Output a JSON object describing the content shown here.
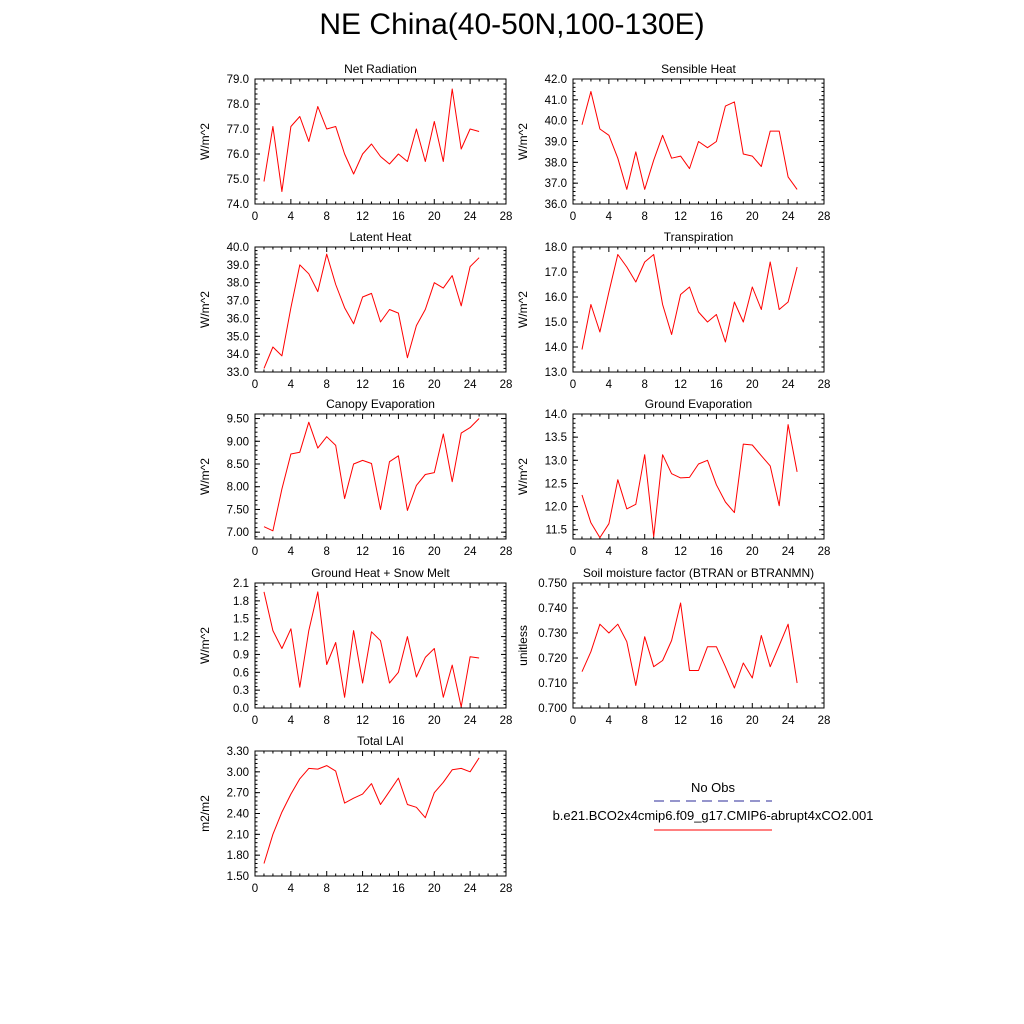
{
  "figure": {
    "title": "NE China(40-50N,100-130E)"
  },
  "legend": {
    "obs_label": "No Obs",
    "model_label": "b.e21.BCO2x4cmip6.f09_g17.CMIP6-abrupt4xCO2.001",
    "obs_color": "#2b2b9a",
    "model_color": "#ff0000"
  },
  "chart_data": [
    {
      "type": "line",
      "title": "Net Radiation",
      "ylabel": "W/m^2",
      "xlim": [
        0,
        28
      ],
      "xticks": [
        "0",
        "4",
        "8",
        "12",
        "16",
        "20",
        "24",
        "28"
      ],
      "ylim": [
        74,
        79
      ],
      "yticks": [
        "74.0",
        "75.0",
        "76.0",
        "77.0",
        "78.0",
        "79.0"
      ],
      "grid": false,
      "series": [
        {
          "color": "#ff0000",
          "x": [
            1,
            2,
            3,
            4,
            5,
            6,
            7,
            8,
            9,
            10,
            11,
            12,
            13,
            14,
            15,
            16,
            17,
            18,
            19,
            20,
            21,
            22,
            23,
            24,
            25
          ],
          "y": [
            74.9,
            77.1,
            74.5,
            77.1,
            77.5,
            76.5,
            77.9,
            77.0,
            77.1,
            76.0,
            75.2,
            76.0,
            76.4,
            75.9,
            75.6,
            76.0,
            75.7,
            77.0,
            75.7,
            77.3,
            75.7,
            78.6,
            76.2,
            77.0,
            76.9
          ]
        }
      ]
    },
    {
      "type": "line",
      "title": "Sensible Heat",
      "ylabel": "W/m^2",
      "xlim": [
        0,
        28
      ],
      "xticks": [
        "0",
        "4",
        "8",
        "12",
        "16",
        "20",
        "24",
        "28"
      ],
      "ylim": [
        36,
        42
      ],
      "yticks": [
        "36.0",
        "37.0",
        "38.0",
        "39.0",
        "40.0",
        "41.0",
        "42.0"
      ],
      "grid": false,
      "series": [
        {
          "color": "#ff0000",
          "x": [
            1,
            2,
            3,
            4,
            5,
            6,
            7,
            8,
            9,
            10,
            11,
            12,
            13,
            14,
            15,
            16,
            17,
            18,
            19,
            20,
            21,
            22,
            23,
            24,
            25
          ],
          "y": [
            39.8,
            41.4,
            39.6,
            39.3,
            38.2,
            36.7,
            38.5,
            36.7,
            38.1,
            39.3,
            38.2,
            38.3,
            37.7,
            39.0,
            38.7,
            39.0,
            40.7,
            40.9,
            38.4,
            38.3,
            37.8,
            39.5,
            39.5,
            37.3,
            36.7
          ]
        }
      ]
    },
    {
      "type": "line",
      "title": "Latent Heat",
      "ylabel": "W/m^2",
      "xlim": [
        0,
        28
      ],
      "xticks": [
        "0",
        "4",
        "8",
        "12",
        "16",
        "20",
        "24",
        "28"
      ],
      "ylim": [
        33,
        40
      ],
      "yticks": [
        "33.0",
        "34.0",
        "35.0",
        "36.0",
        "37.0",
        "38.0",
        "39.0",
        "40.0"
      ],
      "grid": false,
      "series": [
        {
          "color": "#ff0000",
          "x": [
            1,
            2,
            3,
            4,
            5,
            6,
            7,
            8,
            9,
            10,
            11,
            12,
            13,
            14,
            15,
            16,
            17,
            18,
            19,
            20,
            21,
            22,
            23,
            24,
            25
          ],
          "y": [
            33.2,
            34.4,
            33.9,
            36.6,
            39.0,
            38.5,
            37.5,
            39.6,
            37.9,
            36.6,
            35.7,
            37.2,
            37.4,
            35.8,
            36.5,
            36.3,
            33.8,
            35.6,
            36.5,
            38.0,
            37.7,
            38.4,
            36.7,
            38.9,
            39.4
          ]
        }
      ]
    },
    {
      "type": "line",
      "title": "Transpiration",
      "ylabel": "W/m^2",
      "xlim": [
        0,
        28
      ],
      "xticks": [
        "0",
        "4",
        "8",
        "12",
        "16",
        "20",
        "24",
        "28"
      ],
      "ylim": [
        13,
        18
      ],
      "yticks": [
        "13.0",
        "14.0",
        "15.0",
        "16.0",
        "17.0",
        "18.0"
      ],
      "grid": false,
      "series": [
        {
          "color": "#ff0000",
          "x": [
            1,
            2,
            3,
            4,
            5,
            6,
            7,
            8,
            9,
            10,
            11,
            12,
            13,
            14,
            15,
            16,
            17,
            18,
            19,
            20,
            21,
            22,
            23,
            24,
            25
          ],
          "y": [
            13.9,
            15.7,
            14.6,
            16.2,
            17.7,
            17.2,
            16.6,
            17.4,
            17.7,
            15.7,
            14.5,
            16.1,
            16.4,
            15.4,
            15.0,
            15.3,
            14.2,
            15.8,
            15.0,
            16.4,
            15.5,
            17.4,
            15.5,
            15.8,
            17.2
          ]
        }
      ]
    },
    {
      "type": "line",
      "title": "Canopy Evaporation",
      "ylabel": "W/m^2",
      "xlim": [
        0,
        28
      ],
      "xticks": [
        "0",
        "4",
        "8",
        "12",
        "16",
        "20",
        "24",
        "28"
      ],
      "ylim": [
        6.85,
        9.6
      ],
      "yticks": [
        "7.00",
        "7.50",
        "8.00",
        "8.50",
        "9.00",
        "9.50"
      ],
      "grid": false,
      "series": [
        {
          "color": "#ff0000",
          "x": [
            1,
            2,
            3,
            4,
            5,
            6,
            7,
            8,
            9,
            10,
            11,
            12,
            13,
            14,
            15,
            16,
            17,
            18,
            19,
            20,
            21,
            22,
            23,
            24,
            25
          ],
          "y": [
            7.12,
            7.03,
            7.95,
            8.72,
            8.76,
            9.42,
            8.85,
            9.1,
            8.91,
            7.74,
            8.5,
            8.58,
            8.51,
            7.5,
            8.55,
            8.68,
            7.48,
            8.03,
            8.27,
            8.31,
            9.16,
            8.11,
            9.18,
            9.3,
            9.5
          ]
        }
      ]
    },
    {
      "type": "line",
      "title": "Ground Evaporation",
      "ylabel": "W/m^2",
      "xlim": [
        0,
        28
      ],
      "xticks": [
        "0",
        "4",
        "8",
        "12",
        "16",
        "20",
        "24",
        "28"
      ],
      "ylim": [
        11.3,
        14.0
      ],
      "yticks": [
        "11.5",
        "12.0",
        "12.5",
        "13.0",
        "13.5",
        "14.0"
      ],
      "grid": false,
      "series": [
        {
          "color": "#ff0000",
          "x": [
            1,
            2,
            3,
            4,
            5,
            6,
            7,
            8,
            9,
            10,
            11,
            12,
            13,
            14,
            15,
            16,
            17,
            18,
            19,
            20,
            21,
            22,
            23,
            24,
            25
          ],
          "y": [
            12.25,
            11.65,
            11.33,
            11.63,
            12.58,
            11.95,
            12.05,
            13.12,
            11.35,
            13.12,
            12.71,
            12.62,
            12.63,
            12.92,
            13.0,
            12.47,
            12.1,
            11.87,
            13.35,
            13.33,
            13.1,
            12.88,
            12.02,
            13.77,
            12.75
          ]
        }
      ]
    },
    {
      "type": "line",
      "title": "Ground Heat + Snow Melt",
      "ylabel": "W/m^2",
      "xlim": [
        0,
        28
      ],
      "xticks": [
        "0",
        "4",
        "8",
        "12",
        "16",
        "20",
        "24",
        "28"
      ],
      "ylim": [
        0,
        2.1
      ],
      "yticks": [
        "0.0",
        "0.3",
        "0.6",
        "0.9",
        "1.2",
        "1.5",
        "1.8",
        "2.1"
      ],
      "grid": false,
      "series": [
        {
          "color": "#ff0000",
          "x": [
            1,
            2,
            3,
            4,
            5,
            6,
            7,
            8,
            9,
            10,
            11,
            12,
            13,
            14,
            15,
            16,
            17,
            18,
            19,
            20,
            21,
            22,
            23,
            24,
            25
          ],
          "y": [
            1.95,
            1.3,
            1.0,
            1.33,
            0.35,
            1.3,
            1.95,
            0.73,
            1.1,
            0.18,
            1.3,
            0.42,
            1.28,
            1.13,
            0.42,
            0.6,
            1.2,
            0.52,
            0.85,
            1.0,
            0.18,
            0.72,
            0.02,
            0.86,
            0.84
          ]
        }
      ]
    },
    {
      "type": "line",
      "title": "Soil moisture factor (BTRAN or BTRANMN)",
      "ylabel": "unitless",
      "xlim": [
        0,
        28
      ],
      "xticks": [
        "0",
        "4",
        "8",
        "12",
        "16",
        "20",
        "24",
        "28"
      ],
      "ylim": [
        0.7,
        0.75
      ],
      "yticks": [
        "0.700",
        "0.710",
        "0.720",
        "0.730",
        "0.740",
        "0.750"
      ],
      "grid": false,
      "series": [
        {
          "color": "#ff0000",
          "x": [
            1,
            2,
            3,
            4,
            5,
            6,
            7,
            8,
            9,
            10,
            11,
            12,
            13,
            14,
            15,
            16,
            17,
            18,
            19,
            20,
            21,
            22,
            23,
            24,
            25
          ],
          "y": [
            0.7145,
            0.7225,
            0.7335,
            0.73,
            0.7335,
            0.7265,
            0.709,
            0.7285,
            0.7165,
            0.719,
            0.727,
            0.742,
            0.715,
            0.715,
            0.7245,
            0.7245,
            0.7165,
            0.708,
            0.718,
            0.712,
            0.729,
            0.7165,
            0.725,
            0.7335,
            0.71
          ]
        }
      ]
    },
    {
      "type": "line",
      "title": "Total LAI",
      "ylabel": "m2/m2",
      "xlim": [
        0,
        28
      ],
      "xticks": [
        "0",
        "4",
        "8",
        "12",
        "16",
        "20",
        "24",
        "28"
      ],
      "ylim": [
        1.5,
        3.3
      ],
      "yticks": [
        "1.50",
        "1.80",
        "2.10",
        "2.40",
        "2.70",
        "3.00",
        "3.30"
      ],
      "grid": false,
      "series": [
        {
          "color": "#ff0000",
          "x": [
            1,
            2,
            3,
            4,
            5,
            6,
            7,
            8,
            9,
            10,
            11,
            12,
            13,
            14,
            15,
            16,
            17,
            18,
            19,
            20,
            21,
            22,
            23,
            24,
            25
          ],
          "y": [
            1.68,
            2.1,
            2.42,
            2.68,
            2.9,
            3.05,
            3.04,
            3.09,
            3.01,
            2.55,
            2.62,
            2.68,
            2.83,
            2.53,
            2.72,
            2.91,
            2.53,
            2.49,
            2.34,
            2.7,
            2.85,
            3.03,
            3.05,
            3.0,
            3.2
          ]
        }
      ]
    }
  ]
}
